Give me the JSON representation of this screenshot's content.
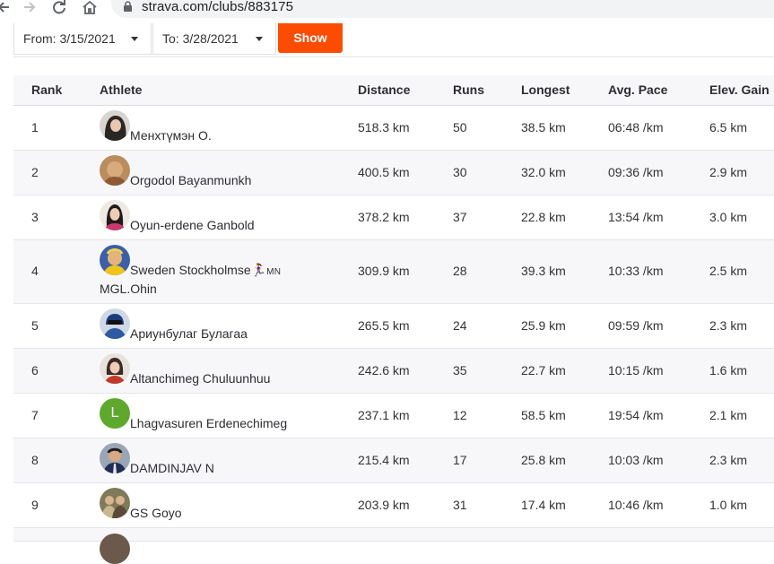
{
  "browser": {
    "url": "strava.com/clubs/883175"
  },
  "filters": {
    "from_label": "From: 3/15/2021",
    "to_label": "To: 3/28/2021",
    "show_label": "Show"
  },
  "table": {
    "headers": {
      "rank": "Rank",
      "athlete": "Athlete",
      "distance": "Distance",
      "runs": "Runs",
      "longest": "Longest",
      "pace": "Avg. Pace",
      "elev": "Elev. Gain"
    },
    "rows": [
      {
        "rank": "1",
        "name": "Менхтүмэн О.",
        "distance": "518.3 km",
        "runs": "50",
        "longest": "38.5 km",
        "pace": "06:48 /km",
        "elev": "6.5 km"
      },
      {
        "rank": "2",
        "name": "Orgodol Bayanmunkh",
        "distance": "400.5 km",
        "runs": "30",
        "longest": "32.0 km",
        "pace": "09:36 /km",
        "elev": "2.9 km"
      },
      {
        "rank": "3",
        "name": "Oyun-erdene Ganbold",
        "distance": "378.2 km",
        "runs": "37",
        "longest": "22.8 km",
        "pace": "13:54 /km",
        "elev": "3.0 km"
      },
      {
        "rank": "4",
        "name": "Sweden Stockholmse",
        "name_symbol": "🏃‍♀️",
        "name_symbol_suffix": "MN",
        "name_line2": "MGL.Ohin",
        "distance": "309.9 km",
        "runs": "28",
        "longest": "39.3 km",
        "pace": "10:33 /km",
        "elev": "2.5 km"
      },
      {
        "rank": "5",
        "name": "Ариунбулаг Булагаа",
        "distance": "265.5 km",
        "runs": "24",
        "longest": "25.9 km",
        "pace": "09:59 /km",
        "elev": "2.3 km"
      },
      {
        "rank": "6",
        "name": "Altanchimeg Chuluunhuu",
        "distance": "242.6 km",
        "runs": "35",
        "longest": "22.7 km",
        "pace": "10:15 /km",
        "elev": "1.6 km"
      },
      {
        "rank": "7",
        "name": "Lhagvasuren Erdenechimeg",
        "avatar_letter": "L",
        "distance": "237.1 km",
        "runs": "12",
        "longest": "58.5 km",
        "pace": "19:54 /km",
        "elev": "2.1 km"
      },
      {
        "rank": "8",
        "name": "DAMDINJAV N",
        "distance": "215.4 km",
        "runs": "17",
        "longest": "25.8 km",
        "pace": "10:03 /km",
        "elev": "2.3 km"
      },
      {
        "rank": "9",
        "name": "GS Goyo",
        "distance": "203.9 km",
        "runs": "31",
        "longest": "17.4 km",
        "pace": "10:46 /km",
        "elev": "1.0 km"
      }
    ]
  },
  "colors": {
    "brand_orange": "#fc4c02",
    "row_alt": "#f7f7fa",
    "avatar_green": "#5fa82e"
  }
}
